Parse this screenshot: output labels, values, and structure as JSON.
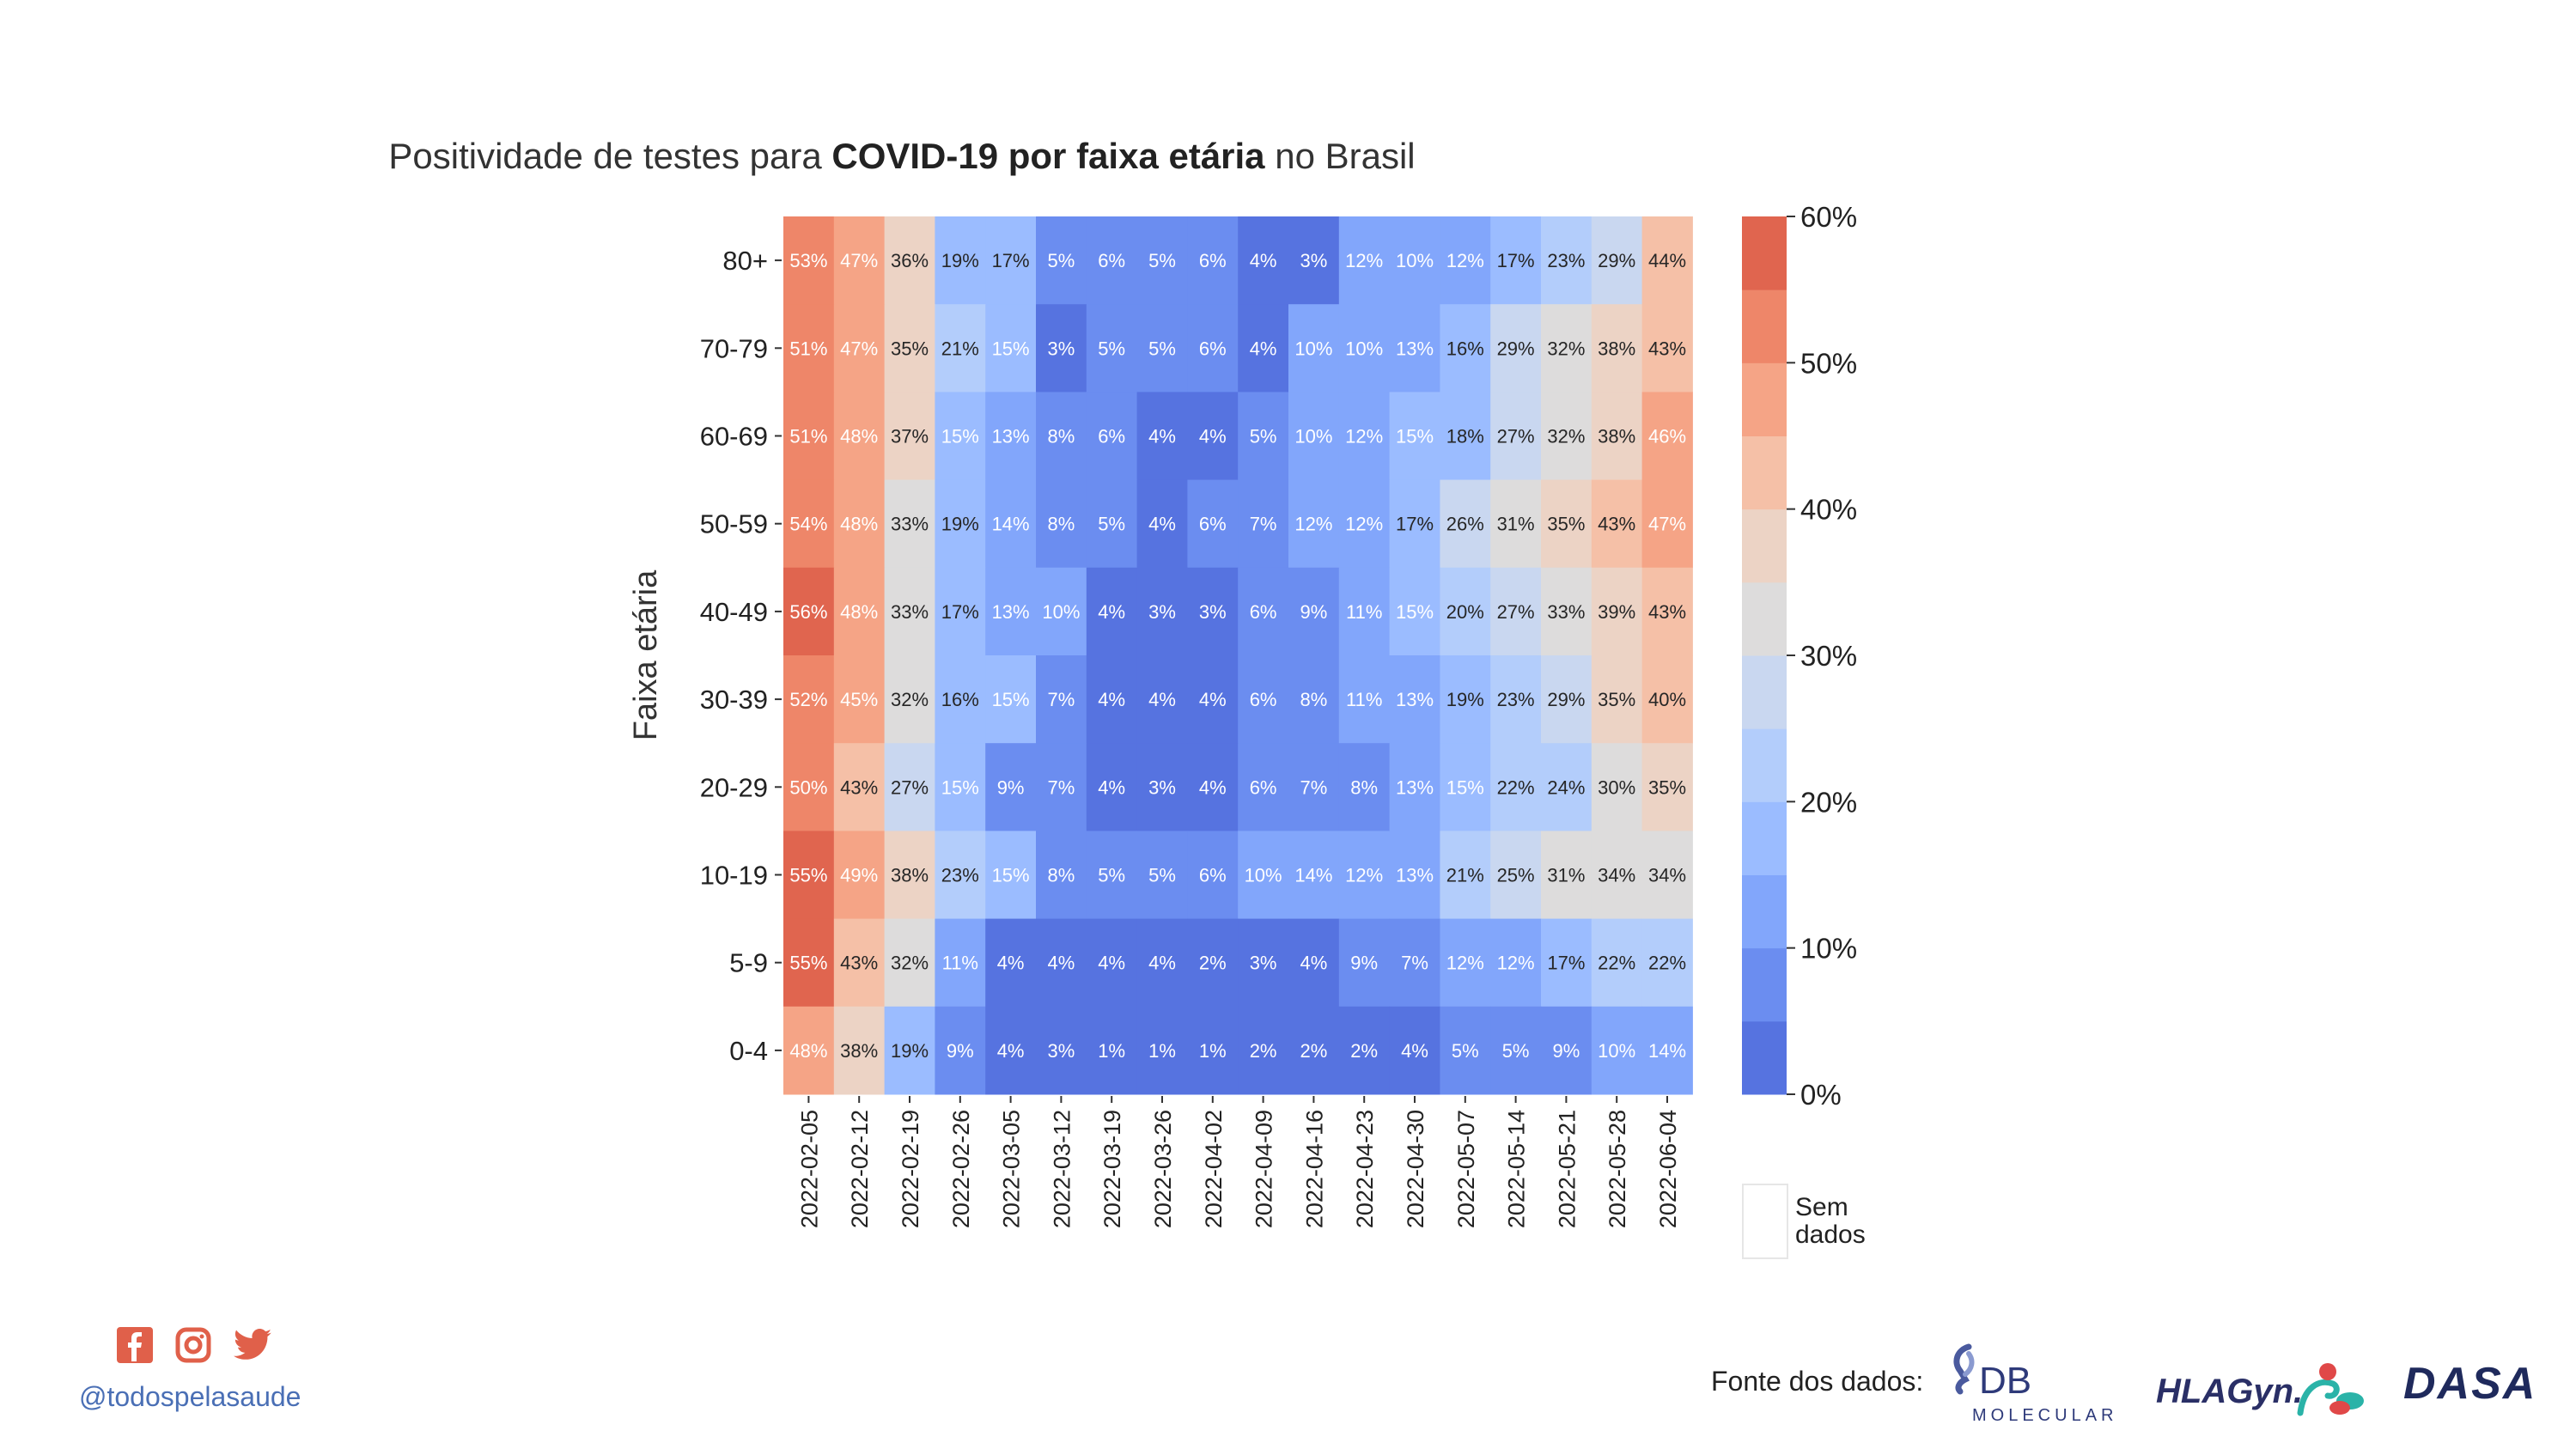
{
  "title": {
    "prefix": "Positividade de testes para ",
    "bold": "COVID-19 por faixa etária",
    "suffix": " no Brasil"
  },
  "chart_data": {
    "type": "heatmap",
    "ylabel": "Faixa etária",
    "rows": [
      "80+",
      "70-79",
      "60-69",
      "50-59",
      "40-49",
      "30-39",
      "20-29",
      "10-19",
      "5-9",
      "0-4"
    ],
    "columns": [
      "2022-02-05",
      "2022-02-12",
      "2022-02-19",
      "2022-02-26",
      "2022-03-05",
      "2022-03-12",
      "2022-03-19",
      "2022-03-26",
      "2022-04-02",
      "2022-04-09",
      "2022-04-16",
      "2022-04-23",
      "2022-04-30",
      "2022-05-07",
      "2022-05-14",
      "2022-05-21",
      "2022-05-28",
      "2022-06-04"
    ],
    "values": [
      [
        53,
        47,
        36,
        19,
        17,
        5,
        6,
        5,
        6,
        4,
        3,
        12,
        10,
        12,
        17,
        23,
        29,
        44
      ],
      [
        51,
        47,
        35,
        21,
        15,
        3,
        5,
        5,
        6,
        4,
        10,
        10,
        13,
        16,
        29,
        32,
        38,
        43
      ],
      [
        51,
        48,
        37,
        15,
        13,
        8,
        6,
        4,
        4,
        5,
        10,
        12,
        15,
        18,
        27,
        32,
        38,
        46
      ],
      [
        54,
        48,
        33,
        19,
        14,
        8,
        5,
        4,
        6,
        7,
        12,
        12,
        17,
        26,
        31,
        35,
        43,
        47
      ],
      [
        56,
        48,
        33,
        17,
        13,
        10,
        4,
        3,
        3,
        6,
        9,
        11,
        15,
        20,
        27,
        33,
        39,
        43
      ],
      [
        52,
        45,
        32,
        16,
        15,
        7,
        4,
        4,
        4,
        6,
        8,
        11,
        13,
        19,
        23,
        29,
        35,
        40
      ],
      [
        50,
        43,
        27,
        15,
        9,
        7,
        4,
        3,
        4,
        6,
        7,
        8,
        13,
        15,
        22,
        24,
        30,
        35
      ],
      [
        55,
        49,
        38,
        23,
        15,
        8,
        5,
        5,
        6,
        10,
        14,
        12,
        13,
        21,
        25,
        31,
        34,
        34
      ],
      [
        55,
        43,
        32,
        11,
        4,
        4,
        4,
        4,
        2,
        3,
        4,
        9,
        7,
        12,
        12,
        17,
        22,
        22
      ],
      [
        48,
        38,
        19,
        9,
        4,
        3,
        1,
        1,
        1,
        2,
        2,
        2,
        4,
        5,
        5,
        9,
        10,
        14
      ]
    ],
    "value_format": "%",
    "colorbar": {
      "ticks": [
        "60%",
        "50%",
        "40%",
        "30%",
        "20%",
        "10%",
        "0%"
      ],
      "range": [
        0,
        60
      ],
      "step": 5,
      "colors": [
        "#5673e0",
        "#6b8df0",
        "#82a6fb",
        "#9bbcff",
        "#b3cdfb",
        "#c9d7f0",
        "#dddcdc",
        "#ecd3c5",
        "#f5c0a7",
        "#f5a486",
        "#ee8669",
        "#e0654f"
      ]
    },
    "no_data_label": [
      "Sem",
      "dados"
    ],
    "grid": false,
    "legend": "right"
  },
  "footer": {
    "handle": "@todospelasaude",
    "source_label": "Fonte dos dados:",
    "social_icons": [
      "facebook-icon",
      "instagram-icon",
      "twitter-icon"
    ],
    "social_color": "#e0604a",
    "logo_db": "DB",
    "logo_db_sub": "MOLECULAR",
    "logo_hlagyn": "HLAGyn.",
    "logo_dasa": "DASA"
  }
}
